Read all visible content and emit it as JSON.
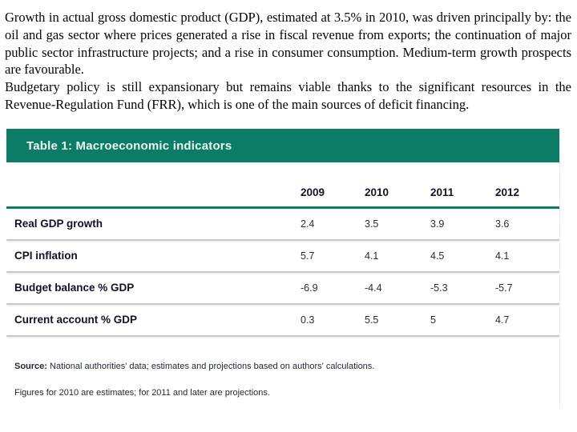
{
  "intro": {
    "paragraph1": "Growth in actual gross domestic product (GDP), estimated at 3.5% in 2010, was driven principally by: the oil and gas sector where prices generated a rise in fiscal revenue from exports; the continuation of major public sector infrastructure projects; and a rise in consumer consumption. Medium-term growth prospects are favourable.",
    "paragraph2": "Budgetary policy is still expansionary but remains viable thanks to the significant resources in the Revenue-Regulation Fund (FRR), which is one of the main sources of deficit financing."
  },
  "table": {
    "title": "Table 1: Macroeconomic indicators",
    "accent_color": "#0d7c67",
    "header_text_color": "#e9f8f2",
    "columns": [
      "2009",
      "2010",
      "2011",
      "2012"
    ],
    "rows": [
      {
        "label": "Real GDP growth",
        "values": [
          "2.4",
          "3.5",
          "3.9",
          "3.6"
        ]
      },
      {
        "label": "CPI inflation",
        "values": [
          "5.7",
          "4.1",
          "4.5",
          "4.1"
        ]
      },
      {
        "label": "Budget balance % GDP",
        "values": [
          "-6.9",
          "-4.4",
          "-5.3",
          "-5.7"
        ]
      },
      {
        "label": "Current account % GDP",
        "values": [
          "0.3",
          "5.5",
          "5",
          "4.7"
        ]
      }
    ],
    "source_label": "Source:",
    "source_text": " National authorities' data; estimates and projections based on authors' calculations.",
    "note": "Figures for 2010 are estimates; for 2011 and later are projections."
  }
}
